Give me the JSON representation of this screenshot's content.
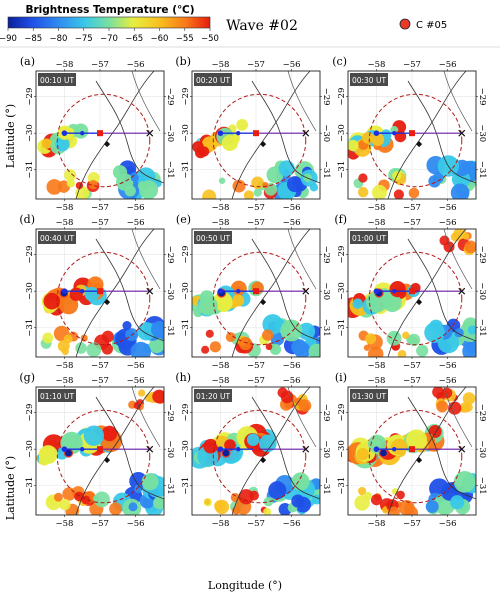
{
  "figure_title": "Wave #02",
  "colorbar": {
    "title": "Brightness Temperature (℃)",
    "ticks": [
      "−90",
      "−85",
      "−80",
      "−75",
      "−70",
      "−65",
      "−60",
      "−55",
      "−50"
    ],
    "colors": [
      "#0a1f9a",
      "#1f50e8",
      "#2f8af0",
      "#39c8e8",
      "#78e0a0",
      "#e8ee40",
      "#f8c020",
      "#f87818",
      "#e81c10"
    ]
  },
  "legend": {
    "label": "C #05",
    "color": "#e83a2a"
  },
  "axis_text": {
    "ylabel": "Latitude (°)",
    "xlabel": "Longitude (°)",
    "xticks": [
      "−58",
      "−57",
      "−56"
    ],
    "yticks_left": [
      "−29",
      "−30",
      "−31"
    ],
    "yticks_right": [
      "−29",
      "−30",
      "−31"
    ]
  },
  "panels": [
    {
      "letter": "(a)",
      "time": "00:10 UT"
    },
    {
      "letter": "(b)",
      "time": "00:20 UT"
    },
    {
      "letter": "(c)",
      "time": "00:30 UT"
    },
    {
      "letter": "(d)",
      "time": "00:40 UT"
    },
    {
      "letter": "(e)",
      "time": "00:50 UT"
    },
    {
      "letter": "(f)",
      "time": "01:00 UT"
    },
    {
      "letter": "(g)",
      "time": "01:10 UT"
    },
    {
      "letter": "(h)",
      "time": "01:20 UT"
    },
    {
      "letter": "(i)",
      "time": "01:30 UT"
    }
  ],
  "chart_data": {
    "type": "heatmap",
    "title": "Wave #02",
    "xlabel": "Longitude (°)",
    "ylabel": "Latitude (°)",
    "xlim": [
      -58.8,
      -55.2
    ],
    "ylim": [
      -31.8,
      -28.3
    ],
    "xticks": [
      -58,
      -57,
      -56
    ],
    "yticks": [
      -29,
      -30,
      -31
    ],
    "colorbar_range": [
      -90,
      -50
    ],
    "colorbar_step": 5,
    "colorbar_label": "Brightness Temperature (℃)",
    "legend": [
      {
        "label": "C #05",
        "color": "#e83a2a",
        "marker": "circle"
      }
    ],
    "panels": [
      {
        "letter": "(a)",
        "time": "00:10 UT"
      },
      {
        "letter": "(b)",
        "time": "00:20 UT"
      },
      {
        "letter": "(c)",
        "time": "00:30 UT"
      },
      {
        "letter": "(d)",
        "time": "00:40 UT"
      },
      {
        "letter": "(e)",
        "time": "00:50 UT"
      },
      {
        "letter": "(f)",
        "time": "01:00 UT"
      },
      {
        "letter": "(g)",
        "time": "01:10 UT"
      },
      {
        "letter": "(h)",
        "time": "01:20 UT"
      },
      {
        "letter": "(i)",
        "time": "01:30 UT"
      }
    ],
    "overlays": {
      "circle_center": [
        -56.9,
        -30.2
      ],
      "circle_radius_deg": 1.3,
      "track_west": [
        [
          -58.0,
          -30.0
        ],
        [
          -57.5,
          -30.0
        ],
        [
          -57.2,
          -30.0
        ],
        [
          -57.0,
          -30.0
        ]
      ],
      "track_east": [
        [
          -57.0,
          -30.0
        ],
        [
          -56.5,
          -30.0
        ],
        [
          -56.0,
          -30.0
        ],
        [
          -55.6,
          -30.0
        ]
      ],
      "east_marker": [
        -55.6,
        -30.0
      ],
      "diamond_marker": [
        -56.8,
        -30.3
      ],
      "red_marker": [
        -57.0,
        -30.0
      ]
    }
  }
}
